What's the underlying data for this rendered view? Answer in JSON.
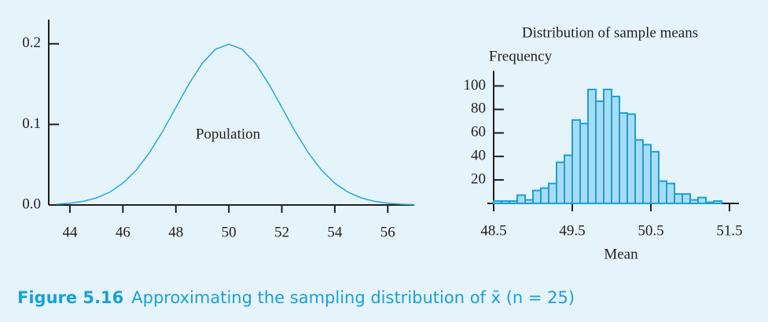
{
  "chart_data": [
    {
      "type": "line",
      "x": [
        43.5,
        44,
        44.5,
        45,
        45.5,
        46,
        46.5,
        47,
        47.5,
        48,
        48.5,
        49,
        49.5,
        50,
        50.5,
        51,
        51.5,
        52,
        52.5,
        53,
        53.5,
        54,
        54.5,
        55,
        55.5,
        56,
        56.5,
        57
      ],
      "values": [
        0.001,
        0.0022,
        0.0045,
        0.0088,
        0.0159,
        0.027,
        0.0431,
        0.0648,
        0.0913,
        0.121,
        0.1506,
        0.176,
        0.1933,
        0.1995,
        0.1933,
        0.176,
        0.1506,
        0.121,
        0.0913,
        0.0648,
        0.0431,
        0.027,
        0.0159,
        0.0088,
        0.0045,
        0.0022,
        0.001,
        0.0004
      ],
      "color": "#29a9d6",
      "annotation": "Population",
      "xlim": [
        43.2,
        57
      ],
      "xticks": [
        44,
        46,
        48,
        50,
        52,
        54,
        56
      ],
      "ylim": [
        0,
        0.23
      ],
      "yticks": [
        {
          "value": 0,
          "label": "0.0"
        },
        0.1,
        0.2
      ]
    },
    {
      "type": "histogram",
      "title": "Distribution of sample means",
      "ylabel": "Frequency",
      "xlabel": "Mean",
      "bins": [
        48.5,
        48.6,
        48.7,
        48.8,
        48.9,
        49.0,
        49.1,
        49.2,
        49.3,
        49.4,
        49.5,
        49.6,
        49.7,
        49.8,
        49.9,
        50.0,
        50.1,
        50.2,
        50.3,
        50.4,
        50.5,
        50.6,
        50.7,
        50.8,
        50.9,
        51.0,
        51.1,
        51.2,
        51.3,
        51.4
      ],
      "values": [
        2,
        2,
        2,
        7,
        3,
        11,
        13,
        17,
        35,
        41,
        71,
        68,
        97,
        87,
        97,
        91,
        77,
        76,
        54,
        50,
        44,
        19,
        17,
        8,
        8,
        3,
        5,
        1,
        2
      ],
      "color": "#a9dcf2",
      "edgecolor": "#1aa0d8",
      "xlim": [
        48.42,
        51.62
      ],
      "xticks": [
        48.5,
        49.5,
        50.5,
        51.5
      ],
      "ylim": [
        0,
        113
      ],
      "yticks": [
        20,
        40,
        60,
        80,
        100
      ]
    }
  ],
  "caption": {
    "label": "Figure 5.16",
    "text": "Approximating the sampling distribution of x̄ (n = 25)"
  }
}
